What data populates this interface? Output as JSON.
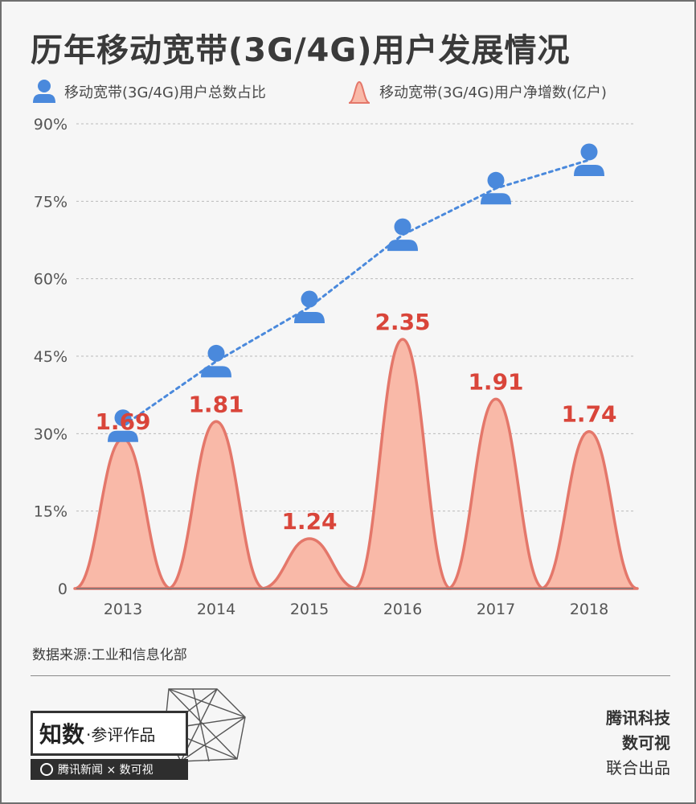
{
  "title": "历年移动宽带(3G/4G)用户发展情况",
  "legend": {
    "share_label": "移动宽带(3G/4G)用户总数占比",
    "net_add_label": "移动宽带(3G/4G)用户净增数(亿户)"
  },
  "colors": {
    "line": "#4a89dc",
    "icon": "#4a89dc",
    "area_fill": "#f9b9a8",
    "area_stroke": "#e4776a",
    "value_label": "#d9453a",
    "grid": "#bbbbbb",
    "axis_text": "#555555"
  },
  "chart_data": {
    "type": "line+area",
    "categories": [
      "2013",
      "2014",
      "2015",
      "2016",
      "2017",
      "2018"
    ],
    "y_ticks": [
      "0",
      "15%",
      "30%",
      "45%",
      "60%",
      "75%",
      "90%"
    ],
    "ylim": [
      0,
      90
    ],
    "grid": "horizontal dashed",
    "series": [
      {
        "name": "移动宽带(3G/4G)用户总数占比",
        "kind": "line",
        "unit": "%",
        "values": [
          31.5,
          44.0,
          54.5,
          68.5,
          77.5,
          83.0
        ]
      },
      {
        "name": "移动宽带(3G/4G)用户净增数(亿户)",
        "kind": "peaks",
        "values": [
          1.69,
          1.81,
          1.24,
          2.35,
          1.91,
          1.74
        ],
        "labels": [
          "1.69",
          "1.81",
          "1.24",
          "2.35",
          "1.91",
          "1.74"
        ]
      }
    ]
  },
  "source": "数据来源:工业和信息化部",
  "footer": {
    "badge_main": "知数",
    "badge_sub": "·参评作品",
    "strip_text": "腾讯新闻 × 数可视",
    "credit_1": "腾讯科技",
    "credit_2": "数可视",
    "credit_3": "联合出品"
  }
}
